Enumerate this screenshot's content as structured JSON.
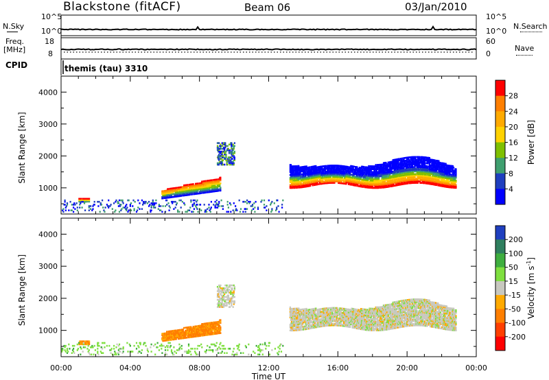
{
  "header": {
    "site": "Blackstone (fitACF)",
    "beam": "Beam 06",
    "date": "03/Jan/2010"
  },
  "status_panels": {
    "nsky_label": "N.Sky",
    "nsearch_label": "N.Search",
    "noise_ticks_left": [
      "10^5",
      "10^0"
    ],
    "noise_ticks_right": [
      "10^5",
      "10^0"
    ],
    "freq_label_line1": "Freq.",
    "freq_label_line2": "[MHz]",
    "freq_ticks": [
      "18",
      "8"
    ],
    "nave_label": "Nave",
    "nave_ticks": [
      "60",
      "0"
    ],
    "cpid_label": "CPID",
    "cpid_value": "themis (tau) 3310"
  },
  "chart_data": [
    {
      "type": "heatmap",
      "panel": "power",
      "ylabel": "Slant Range [km]",
      "yticks": [
        "1000",
        "2000",
        "3000",
        "4000"
      ],
      "ylim": [
        180,
        4500
      ],
      "xlim_hours": [
        0,
        24
      ],
      "colorbar_label": "Power [dB]",
      "colorbar_ticks": [
        "28",
        "24",
        "20",
        "16",
        "12",
        "8",
        "4"
      ],
      "colorbar_colors": [
        "#ff0000",
        "#ff7f00",
        "#ffaa00",
        "#ffd200",
        "#7fc000",
        "#3f9f6f",
        "#1f3fbf",
        "#0000ff"
      ],
      "features": [
        {
          "t": [
            1.0,
            1.6
          ],
          "r": [
            540,
            650
          ],
          "level": "high"
        },
        {
          "t": [
            5.8,
            9.2
          ],
          "r": [
            640,
            1300
          ],
          "level": "high-to-mid"
        },
        {
          "t": [
            9.0,
            10.0
          ],
          "r": [
            1700,
            2400
          ],
          "level": "low"
        },
        {
          "t": [
            13.2,
            22.8
          ],
          "r": [
            900,
            1900
          ],
          "level": "high-to-low"
        },
        {
          "t": [
            0.0,
            12.8
          ],
          "r": [
            220,
            600
          ],
          "level": "low-scatter"
        }
      ]
    },
    {
      "type": "heatmap",
      "panel": "velocity",
      "ylabel": "Slant Range [km]",
      "yticks": [
        "1000",
        "2000",
        "3000",
        "4000"
      ],
      "ylim": [
        180,
        4500
      ],
      "xlim_hours": [
        0,
        24
      ],
      "xticks": [
        "00:00",
        "04:00",
        "08:00",
        "12:00",
        "16:00",
        "20:00",
        "00:00"
      ],
      "xlabel": "Time UT",
      "colorbar_label": "Velocity [m s^-1]",
      "colorbar_ticks": [
        "200",
        "100",
        "50",
        "15",
        "-15",
        "-50",
        "-100",
        "-200"
      ],
      "colorbar_colors": [
        "#1f3fbf",
        "#2f7f5f",
        "#3fae3f",
        "#7fdf3f",
        "#c8c8bf",
        "#ffaa00",
        "#ff7f00",
        "#ff3f00",
        "#ff0000"
      ],
      "features": [
        {
          "t": [
            1.0,
            1.6
          ],
          "r": [
            540,
            650
          ],
          "value": -40
        },
        {
          "t": [
            5.8,
            9.2
          ],
          "r": [
            640,
            1300
          ],
          "value": -60
        },
        {
          "t": [
            9.0,
            10.0
          ],
          "r": [
            1700,
            2400
          ],
          "value": 0
        },
        {
          "t": [
            13.2,
            22.8
          ],
          "r": [
            900,
            1900
          ],
          "value": 0
        },
        {
          "t": [
            0.0,
            12.8
          ],
          "r": [
            220,
            600
          ],
          "value": 30
        }
      ]
    }
  ]
}
